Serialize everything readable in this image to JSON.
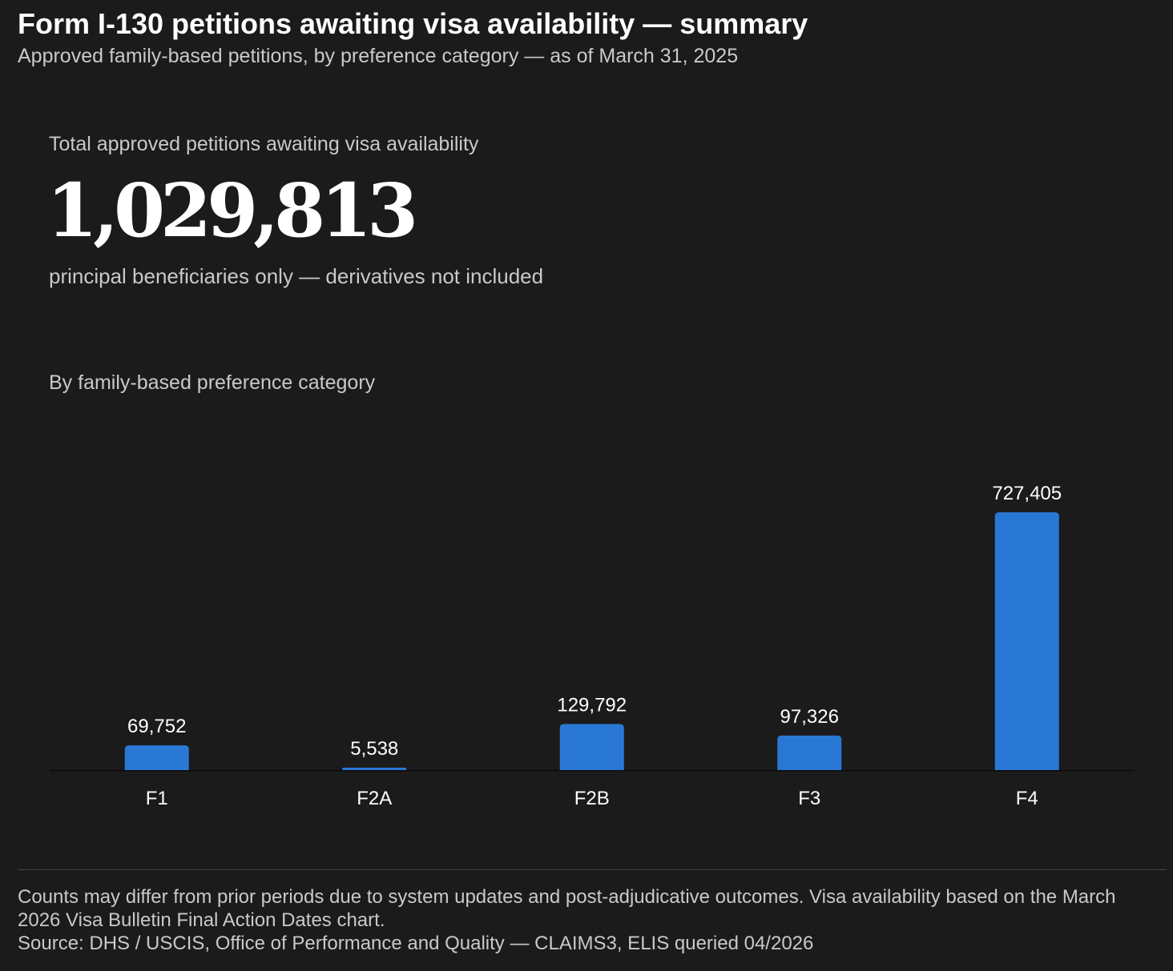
{
  "header": {
    "title": "Form I-130 petitions awaiting visa availability — summary",
    "subtitle": "Approved family-based petitions, by preference category — as of March 31, 2025"
  },
  "kpi": {
    "label": "Total approved petitions awaiting visa availability",
    "value": "1,029,813",
    "note": "principal beneficiaries only — derivatives not included"
  },
  "chart_heading": "By family-based preference category",
  "chart_data": {
    "type": "bar",
    "categories": [
      "F1",
      "F2A",
      "F2B",
      "F3",
      "F4"
    ],
    "values": [
      69752,
      5538,
      129792,
      97326,
      727405
    ],
    "value_labels": [
      "69,752",
      "5,538",
      "129,792",
      "97,326",
      "727,405"
    ],
    "ylim": [
      0,
      727405
    ],
    "grid": false,
    "bar_color": "#2a78d6"
  },
  "footer": {
    "note": "Counts may differ from prior periods due to system updates and post-adjudicative outcomes. Visa availability based on the March 2026 Visa Bulletin Final Action Dates chart.",
    "source": "Source: DHS / USCIS, Office of Performance and Quality — CLAIMS3, ELIS queried 04/2026"
  }
}
